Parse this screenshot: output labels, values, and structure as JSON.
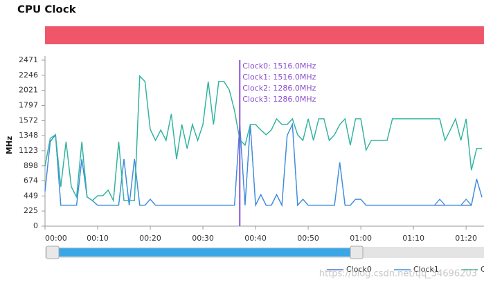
{
  "chart_data": {
    "type": "line",
    "title": "CPU Clock",
    "y_label": "MHz",
    "x": [
      0,
      1,
      2,
      3,
      4,
      5,
      6,
      7,
      8,
      9,
      10,
      11,
      12,
      13,
      14,
      15,
      16,
      17,
      18,
      19,
      20,
      21,
      22,
      23,
      24,
      25,
      26,
      27,
      28,
      29,
      30,
      31,
      32,
      33,
      34,
      35,
      36,
      37,
      38,
      39,
      40,
      41,
      42,
      43,
      44,
      45,
      46,
      47,
      48,
      49,
      50,
      51,
      52,
      53,
      54,
      55,
      56,
      57,
      58,
      59,
      60,
      61,
      62,
      63,
      64,
      65,
      66,
      67,
      68,
      69,
      70,
      71,
      72,
      73,
      74,
      75,
      76,
      77,
      78,
      79,
      80,
      81,
      82,
      83
    ],
    "xlim": [
      0,
      83.4
    ],
    "xticks": [
      {
        "value": 0,
        "label": "00:00"
      },
      {
        "value": 10,
        "label": "00:10"
      },
      {
        "value": 20,
        "label": "00:20"
      },
      {
        "value": 30,
        "label": "00:30"
      },
      {
        "value": 40,
        "label": "00:40"
      },
      {
        "value": 50,
        "label": "00:50"
      },
      {
        "value": 60,
        "label": "01:00"
      },
      {
        "value": 70,
        "label": "01:10"
      },
      {
        "value": 80,
        "label": "01:20"
      }
    ],
    "ylim": [
      0,
      2471
    ],
    "yticks": [
      0,
      225,
      449,
      674,
      898,
      1123,
      1348,
      1572,
      1797,
      2021,
      2246,
      2471
    ],
    "series": [
      {
        "name": "Clock0",
        "color": "#4e6fd0",
        "values": [
          520,
          1257,
          1360,
          311,
          311,
          311,
          311,
          1000,
          433,
          381,
          311,
          311,
          311,
          311,
          311,
          1000,
          311,
          1000,
          311,
          311,
          400,
          311,
          311,
          311,
          311,
          311,
          311,
          311,
          311,
          311,
          311,
          311,
          311,
          311,
          311,
          311,
          311,
          1516,
          311,
          1516,
          311,
          470,
          311,
          311,
          470,
          311,
          1350,
          1516,
          311,
          400,
          311,
          311,
          311,
          311,
          311,
          311,
          950,
          311,
          311,
          400,
          400,
          311,
          311,
          311,
          311,
          311,
          311,
          311,
          311,
          311,
          311,
          311,
          311,
          311,
          311,
          311,
          311,
          311,
          311,
          311,
          311,
          311,
          700,
          430
        ]
      },
      {
        "name": "Clock1",
        "color": "#3d8fe0",
        "values": [
          520,
          1257,
          1360,
          311,
          311,
          311,
          311,
          1000,
          433,
          381,
          311,
          311,
          311,
          311,
          311,
          1000,
          311,
          1000,
          311,
          311,
          400,
          311,
          311,
          311,
          311,
          311,
          311,
          311,
          311,
          311,
          311,
          311,
          311,
          311,
          311,
          311,
          311,
          1516,
          311,
          1516,
          311,
          470,
          311,
          311,
          470,
          311,
          1350,
          1516,
          311,
          400,
          311,
          311,
          311,
          311,
          311,
          311,
          950,
          311,
          311,
          400,
          400,
          311,
          311,
          311,
          311,
          311,
          311,
          311,
          311,
          311,
          311,
          311,
          311,
          311,
          311,
          400,
          311,
          311,
          311,
          311,
          400,
          311,
          700,
          430
        ]
      },
      {
        "name": "Clock2",
        "color": "#3aa88f",
        "values": [
          896,
          1308,
          1360,
          587,
          1257,
          587,
          433,
          1257,
          433,
          381,
          453,
          453,
          536,
          381,
          1257,
          381,
          381,
          381,
          2235,
          2153,
          1442,
          1277,
          1432,
          1277,
          1669,
          999,
          1514,
          1154,
          1514,
          1277,
          1514,
          2153,
          1514,
          2153,
          2153,
          2029,
          1720,
          1286,
          1205,
          1514,
          1514,
          1432,
          1360,
          1432,
          1597,
          1514,
          1514,
          1597,
          1360,
          1277,
          1597,
          1277,
          1597,
          1597,
          1277,
          1360,
          1514,
          1597,
          1205,
          1597,
          1597,
          1133,
          1277,
          1277,
          1277,
          1277,
          1597,
          1597,
          1597,
          1597,
          1597,
          1597,
          1597,
          1597,
          1597,
          1597,
          1277,
          1432,
          1597,
          1277,
          1597,
          834,
          1154,
          1154
        ]
      },
      {
        "name": "Clock3",
        "color": "#2fb5a0",
        "values": [
          896,
          1308,
          1360,
          587,
          1257,
          587,
          433,
          1257,
          433,
          381,
          453,
          453,
          536,
          381,
          1257,
          381,
          381,
          381,
          2235,
          2153,
          1442,
          1277,
          1432,
          1277,
          1669,
          999,
          1514,
          1154,
          1514,
          1277,
          1514,
          2153,
          1514,
          2153,
          2153,
          2029,
          1720,
          1286,
          1205,
          1514,
          1514,
          1432,
          1360,
          1432,
          1597,
          1514,
          1514,
          1597,
          1360,
          1277,
          1597,
          1277,
          1597,
          1597,
          1277,
          1360,
          1514,
          1597,
          1205,
          1597,
          1597,
          1133,
          1277,
          1277,
          1277,
          1277,
          1597,
          1597,
          1597,
          1597,
          1597,
          1597,
          1597,
          1597,
          1597,
          1597,
          1277,
          1432,
          1597,
          1277,
          1597,
          834,
          1154,
          1154
        ]
      }
    ],
    "marker_x": 37,
    "marker_color": "#8a4fd0",
    "tooltip": [
      "Clock0: 1516.0MHz",
      "Clock1: 1516.0MHz",
      "Clock2: 1286.0MHz",
      "Clock3: 1286.0MHz"
    ],
    "watermark": "https://blog.csdn.net/qq_34696203"
  }
}
